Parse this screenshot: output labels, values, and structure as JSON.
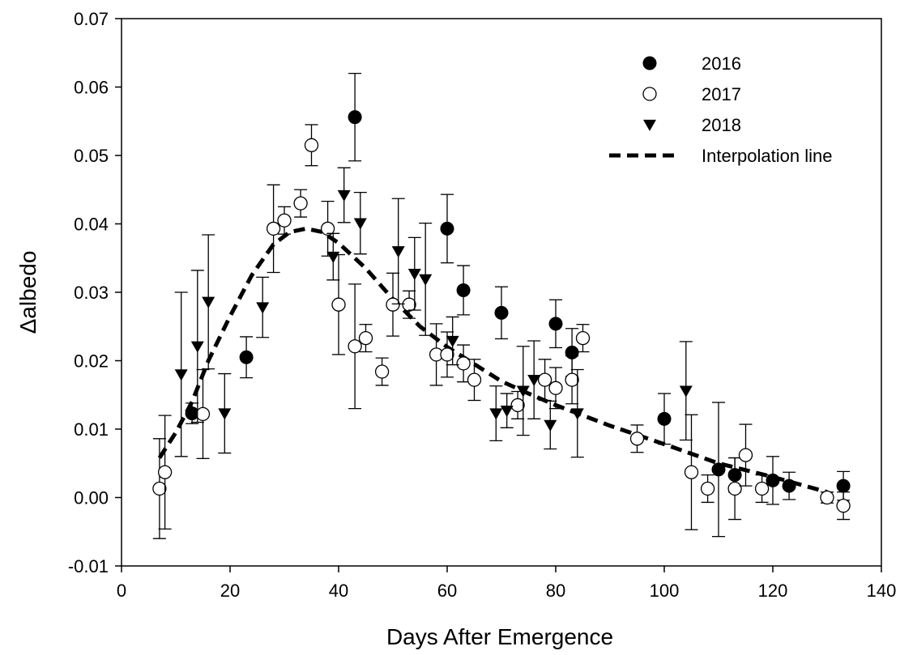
{
  "chart_data": {
    "type": "scatter",
    "xlabel": "Days After Emergence",
    "ylabel": "Δalbedo",
    "xlim": [
      0,
      140
    ],
    "ylim": [
      -0.01,
      0.07
    ],
    "xticks": [
      0,
      20,
      40,
      60,
      80,
      100,
      120,
      140
    ],
    "xtick_labels": [
      "0",
      "20",
      "40",
      "60",
      "80",
      "100",
      "120",
      "140"
    ],
    "yticks": [
      -0.01,
      0.0,
      0.01,
      0.02,
      0.03,
      0.04,
      0.05,
      0.06,
      0.07
    ],
    "ytick_labels": [
      "-0.01",
      "0.00",
      "0.01",
      "0.02",
      "0.03",
      "0.04",
      "0.05",
      "0.06",
      "0.07"
    ],
    "grid": false,
    "legend_position": "top-right",
    "series": [
      {
        "name": "2016",
        "marker": "filled-circle",
        "color": "#000000",
        "points": [
          {
            "x": 13,
            "y": 0.0123,
            "err": 0.0015
          },
          {
            "x": 23,
            "y": 0.0205,
            "err": 0.003
          },
          {
            "x": 43,
            "y": 0.0556,
            "err": 0.0064
          },
          {
            "x": 60,
            "y": 0.0393,
            "err": 0.005
          },
          {
            "x": 63,
            "y": 0.0303,
            "err": 0.0036
          },
          {
            "x": 70,
            "y": 0.027,
            "err": 0.0038
          },
          {
            "x": 80,
            "y": 0.0254,
            "err": 0.0035
          },
          {
            "x": 83,
            "y": 0.0212,
            "err": 0.0035
          },
          {
            "x": 100,
            "y": 0.0115,
            "err": 0.0037
          },
          {
            "x": 110,
            "y": 0.0041,
            "err": 0.0098
          },
          {
            "x": 113,
            "y": 0.0033,
            "err": 0.0025
          },
          {
            "x": 120,
            "y": 0.0025,
            "err": 0.0035
          },
          {
            "x": 123,
            "y": 0.0017,
            "err": 0.002
          },
          {
            "x": 133,
            "y": 0.0017,
            "err": 0.0021
          }
        ]
      },
      {
        "name": "2017",
        "marker": "open-circle",
        "color": "#000000",
        "points": [
          {
            "x": 7,
            "y": 0.0013,
            "err": 0.0073
          },
          {
            "x": 8,
            "y": 0.0037,
            "err": 0.0083
          },
          {
            "x": 15,
            "y": 0.0122,
            "err": 0.0065
          },
          {
            "x": 28,
            "y": 0.0393,
            "err": 0.0064
          },
          {
            "x": 30,
            "y": 0.0405,
            "err": 0.002
          },
          {
            "x": 33,
            "y": 0.043,
            "err": 0.002
          },
          {
            "x": 35,
            "y": 0.0515,
            "err": 0.003
          },
          {
            "x": 38,
            "y": 0.0393,
            "err": 0.004
          },
          {
            "x": 40,
            "y": 0.0282,
            "err": 0.0073
          },
          {
            "x": 43,
            "y": 0.0221,
            "err": 0.0091
          },
          {
            "x": 45,
            "y": 0.0233,
            "err": 0.002
          },
          {
            "x": 48,
            "y": 0.0184,
            "err": 0.002
          },
          {
            "x": 50,
            "y": 0.0282,
            "err": 0.0046
          },
          {
            "x": 53,
            "y": 0.0282,
            "err": 0.002
          },
          {
            "x": 58,
            "y": 0.0209,
            "err": 0.0045
          },
          {
            "x": 60,
            "y": 0.0209,
            "err": 0.0033
          },
          {
            "x": 63,
            "y": 0.0196,
            "err": 0.0027
          },
          {
            "x": 65,
            "y": 0.0172,
            "err": 0.003
          },
          {
            "x": 73,
            "y": 0.0135,
            "err": 0.002
          },
          {
            "x": 78,
            "y": 0.0172,
            "err": 0.003
          },
          {
            "x": 80,
            "y": 0.016,
            "err": 0.003
          },
          {
            "x": 83,
            "y": 0.0172,
            "err": 0.0035
          },
          {
            "x": 85,
            "y": 0.0233,
            "err": 0.002
          },
          {
            "x": 95,
            "y": 0.0086,
            "err": 0.002
          },
          {
            "x": 105,
            "y": 0.0037,
            "err": 0.0084
          },
          {
            "x": 108,
            "y": 0.0013,
            "err": 0.002
          },
          {
            "x": 113,
            "y": 0.0013,
            "err": 0.0045
          },
          {
            "x": 115,
            "y": 0.0062,
            "err": 0.0045
          },
          {
            "x": 118,
            "y": 0.0013,
            "err": 0.002
          },
          {
            "x": 130,
            "y": 0.0,
            "err": 0.0008
          },
          {
            "x": 133,
            "y": -0.0012,
            "err": 0.002
          }
        ]
      },
      {
        "name": "2018",
        "marker": "filled-triangle-down",
        "color": "#000000",
        "points": [
          {
            "x": 11,
            "y": 0.018,
            "err": 0.012
          },
          {
            "x": 14,
            "y": 0.0221,
            "err": 0.0111
          },
          {
            "x": 16,
            "y": 0.0286,
            "err": 0.0098
          },
          {
            "x": 19,
            "y": 0.0123,
            "err": 0.0058
          },
          {
            "x": 26,
            "y": 0.0278,
            "err": 0.0044
          },
          {
            "x": 39,
            "y": 0.0352,
            "err": 0.0034
          },
          {
            "x": 41,
            "y": 0.0442,
            "err": 0.004
          },
          {
            "x": 44,
            "y": 0.0401,
            "err": 0.0045
          },
          {
            "x": 51,
            "y": 0.036,
            "err": 0.0077
          },
          {
            "x": 54,
            "y": 0.0327,
            "err": 0.0053
          },
          {
            "x": 56,
            "y": 0.0319,
            "err": 0.0082
          },
          {
            "x": 61,
            "y": 0.0229,
            "err": 0.0035
          },
          {
            "x": 69,
            "y": 0.0123,
            "err": 0.004
          },
          {
            "x": 71,
            "y": 0.0127,
            "err": 0.0025
          },
          {
            "x": 74,
            "y": 0.0156,
            "err": 0.0065
          },
          {
            "x": 76,
            "y": 0.0172,
            "err": 0.0057
          },
          {
            "x": 79,
            "y": 0.0106,
            "err": 0.0035
          },
          {
            "x": 84,
            "y": 0.0123,
            "err": 0.0064
          },
          {
            "x": 104,
            "y": 0.0156,
            "err": 0.0072
          }
        ]
      },
      {
        "name": "Interpolation line",
        "marker": "dashed-line",
        "color": "#000000",
        "points": [
          {
            "x": 7,
            "y": 0.0058
          },
          {
            "x": 10,
            "y": 0.0095
          },
          {
            "x": 13,
            "y": 0.014
          },
          {
            "x": 16,
            "y": 0.02
          },
          {
            "x": 20,
            "y": 0.0265
          },
          {
            "x": 24,
            "y": 0.0325
          },
          {
            "x": 28,
            "y": 0.037
          },
          {
            "x": 31,
            "y": 0.0388
          },
          {
            "x": 34,
            "y": 0.0393
          },
          {
            "x": 37,
            "y": 0.0388
          },
          {
            "x": 40,
            "y": 0.0372
          },
          {
            "x": 45,
            "y": 0.0335
          },
          {
            "x": 50,
            "y": 0.029
          },
          {
            "x": 55,
            "y": 0.025
          },
          {
            "x": 60,
            "y": 0.022
          },
          {
            "x": 65,
            "y": 0.0195
          },
          {
            "x": 70,
            "y": 0.017
          },
          {
            "x": 75,
            "y": 0.0152
          },
          {
            "x": 80,
            "y": 0.0135
          },
          {
            "x": 90,
            "y": 0.0105
          },
          {
            "x": 100,
            "y": 0.0078
          },
          {
            "x": 110,
            "y": 0.005
          },
          {
            "x": 120,
            "y": 0.003
          },
          {
            "x": 130,
            "y": 0.0008
          }
        ]
      }
    ]
  }
}
